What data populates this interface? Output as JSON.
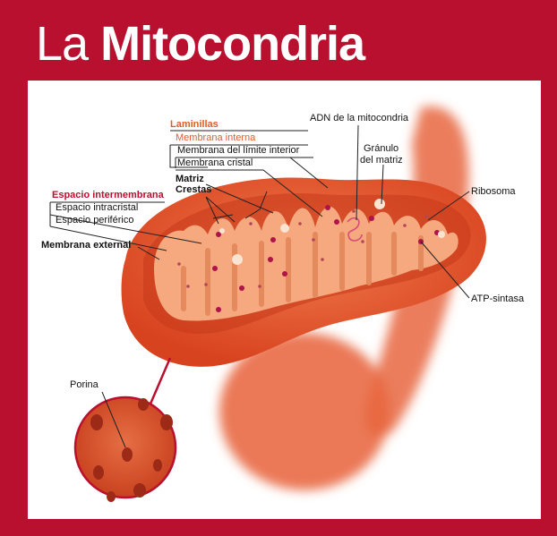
{
  "title": {
    "part1": "La",
    "part2": "Mitocondria"
  },
  "labels": {
    "laminillas": "Laminillas",
    "membrana_interna": "Membrana interna",
    "membrana_limite": "Membrana del límite interior",
    "membrana_cristal": "Membrana cristal",
    "matriz": "Matriz",
    "crestas": "Crestas",
    "espacio_intermembrana": "Espacio intermembrana",
    "espacio_intracristal": "Espacio intracristal",
    "espacio_periferico": "Espacio periférico",
    "membrana_externa": "Membrana external",
    "adn": "ADN de la mitocondria",
    "granulo_1": "Gránulo",
    "granulo_2": "del matriz",
    "ribosoma": "Ribosoma",
    "atp": "ATP-sintasa",
    "porina": "Porina"
  },
  "colors": {
    "background": "#b8102e",
    "outer_membrane": "#e5542a",
    "inner_membrane": "#f6a87e",
    "accent_orange": "#e35b2a",
    "accent_red": "#b8102e",
    "particle": "#b0124a"
  }
}
